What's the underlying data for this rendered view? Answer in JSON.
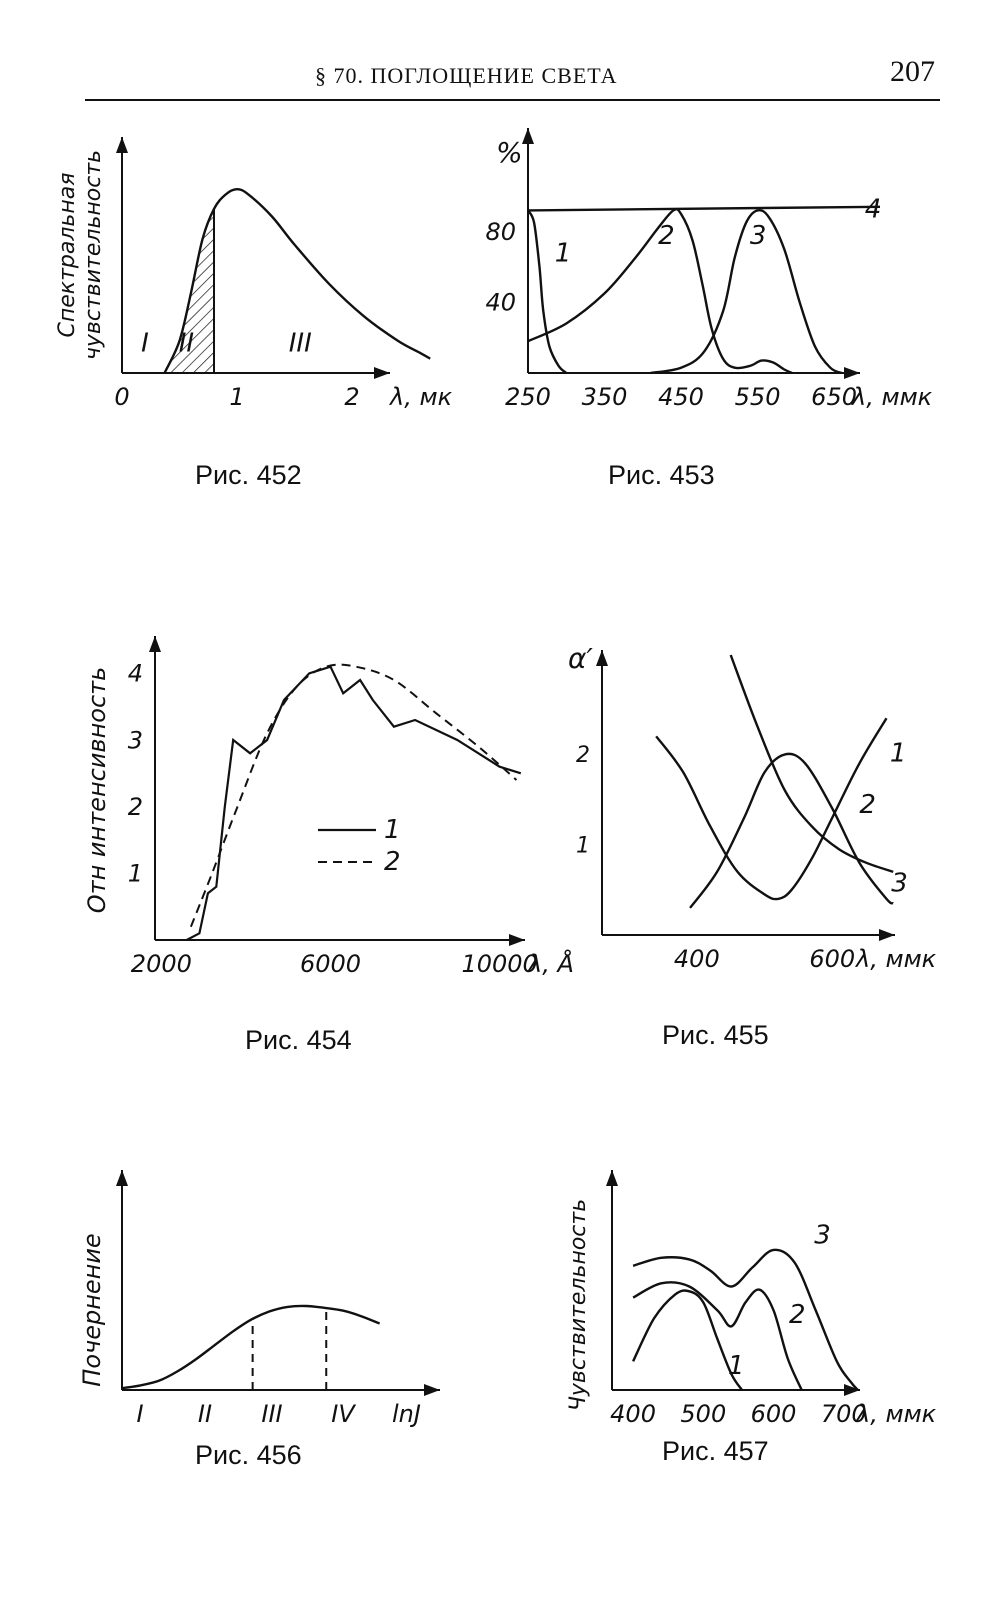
{
  "header": {
    "title": "§ 70. ПОГЛОЩЕНИЕ СВЕТА",
    "page_number": "207"
  },
  "chart_data": [
    {
      "id": "fig452",
      "type": "line",
      "caption": "Рис. 452",
      "ylabel_lines": [
        "Спектральная",
        "чувствительность"
      ],
      "xlabel": "λ, мк",
      "xticks": [
        {
          "v": 0,
          "t": "0"
        },
        {
          "v": 1,
          "t": "1"
        },
        {
          "v": 2,
          "t": "2"
        }
      ],
      "xlim": [
        0,
        2.8
      ],
      "ylim": [
        0,
        1.25
      ],
      "series": [
        {
          "points": [
            [
              0.37,
              0
            ],
            [
              0.5,
              0.18
            ],
            [
              0.6,
              0.45
            ],
            [
              0.7,
              0.75
            ],
            [
              0.8,
              0.92
            ],
            [
              0.9,
              1.0
            ],
            [
              1.0,
              1.03
            ],
            [
              1.1,
              1.0
            ],
            [
              1.3,
              0.88
            ],
            [
              1.5,
              0.72
            ],
            [
              1.8,
              0.5
            ],
            [
              2.1,
              0.32
            ],
            [
              2.4,
              0.18
            ],
            [
              2.6,
              0.11
            ],
            [
              2.68,
              0.08
            ]
          ]
        }
      ],
      "shaded_region": {
        "from": 0.42,
        "to": 0.8
      },
      "region_labels": [
        {
          "text": "I",
          "x": 0.2,
          "y": 0.12
        },
        {
          "text": "II",
          "x": 0.56,
          "y": 0.12
        },
        {
          "text": "III",
          "x": 1.55,
          "y": 0.12
        }
      ]
    },
    {
      "id": "fig453",
      "type": "line",
      "caption": "Рис. 453",
      "ylabel": "%",
      "xlabel": "λ, ммк",
      "xticks": [
        {
          "v": 250,
          "t": "250"
        },
        {
          "v": 350,
          "t": "350"
        },
        {
          "v": 450,
          "t": "450"
        },
        {
          "v": 550,
          "t": "550"
        },
        {
          "v": 650,
          "t": "650"
        }
      ],
      "yticks": [
        {
          "v": 40,
          "t": "40"
        },
        {
          "v": 80,
          "t": "80"
        }
      ],
      "xlim": [
        250,
        710
      ],
      "ylim": [
        0,
        112
      ],
      "series": [
        {
          "name": "1",
          "points": [
            [
              250,
              92
            ],
            [
              258,
              85
            ],
            [
              265,
              60
            ],
            [
              270,
              35
            ],
            [
              278,
              15
            ],
            [
              290,
              4
            ],
            [
              300,
              0
            ]
          ]
        },
        {
          "name": "2",
          "points": [
            [
              250,
              18
            ],
            [
              300,
              28
            ],
            [
              350,
              45
            ],
            [
              390,
              65
            ],
            [
              420,
              82
            ],
            [
              440,
              92
            ],
            [
              450,
              90
            ],
            [
              465,
              75
            ],
            [
              478,
              50
            ],
            [
              490,
              25
            ],
            [
              505,
              8
            ],
            [
              520,
              3
            ],
            [
              540,
              4
            ],
            [
              555,
              7
            ],
            [
              570,
              6
            ],
            [
              585,
              2
            ],
            [
              595,
              0
            ]
          ]
        },
        {
          "name": "3",
          "points": [
            [
              410,
              0
            ],
            [
              450,
              3
            ],
            [
              480,
              12
            ],
            [
              505,
              35
            ],
            [
              520,
              65
            ],
            [
              535,
              85
            ],
            [
              550,
              92
            ],
            [
              565,
              88
            ],
            [
              585,
              70
            ],
            [
              605,
              40
            ],
            [
              625,
              15
            ],
            [
              645,
              3
            ],
            [
              660,
              0
            ]
          ]
        },
        {
          "name": "4",
          "points": [
            [
              250,
              92
            ],
            [
              710,
              94
            ]
          ]
        }
      ],
      "series_labels": [
        {
          "text": "1",
          "x": 285,
          "y": 63
        },
        {
          "text": "2",
          "x": 420,
          "y": 73
        },
        {
          "text": "3",
          "x": 540,
          "y": 73
        },
        {
          "text": "4",
          "x": 690,
          "y": 88
        }
      ]
    },
    {
      "id": "fig454",
      "type": "line",
      "caption": "Рис. 454",
      "ylabel": "Отн интенсивность",
      "xlabel": "λ, Å",
      "xticks": [
        {
          "v": 2000,
          "t": "2000"
        },
        {
          "v": 6000,
          "t": "6000"
        },
        {
          "v": 10000,
          "t": "10000"
        }
      ],
      "yticks": [
        {
          "v": 1,
          "t": "1"
        },
        {
          "v": 2,
          "t": "2"
        },
        {
          "v": 3,
          "t": "3"
        },
        {
          "v": 4,
          "t": "4"
        }
      ],
      "xlim": [
        1850,
        10600
      ],
      "ylim": [
        0,
        4.5
      ],
      "series": [
        {
          "name": "1",
          "points": [
            [
              2600,
              0
            ],
            [
              2900,
              0.1
            ],
            [
              3100,
              0.7
            ],
            [
              3300,
              0.8
            ],
            [
              3500,
              2.0
            ],
            [
              3700,
              3.0
            ],
            [
              4100,
              2.8
            ],
            [
              4500,
              3.0
            ],
            [
              4900,
              3.6
            ],
            [
              5500,
              4.0
            ],
            [
              6000,
              4.1
            ],
            [
              6300,
              3.7
            ],
            [
              6700,
              3.9
            ],
            [
              7000,
              3.6
            ],
            [
              7500,
              3.2
            ],
            [
              8000,
              3.3
            ],
            [
              9000,
              3.0
            ],
            [
              10000,
              2.6
            ],
            [
              10500,
              2.5
            ]
          ]
        },
        {
          "name": "2",
          "points": [
            [
              2700,
              0.2
            ],
            [
              3200,
              1.0
            ],
            [
              3800,
              2.0
            ],
            [
              4500,
              3.1
            ],
            [
              5200,
              3.8
            ],
            [
              5900,
              4.1
            ],
            [
              6600,
              4.1
            ],
            [
              7500,
              3.9
            ],
            [
              8500,
              3.4
            ],
            [
              9500,
              2.9
            ],
            [
              10400,
              2.4
            ]
          ]
        }
      ],
      "legend": [
        {
          "name": "1",
          "style": "solid"
        },
        {
          "name": "2",
          "style": "dashed"
        }
      ]
    },
    {
      "id": "fig455",
      "type": "line",
      "caption": "Рис. 455",
      "ylabel": "α′",
      "xlabel": "λ, ммк",
      "xticks": [
        {
          "v": 400,
          "t": "400"
        },
        {
          "v": 600,
          "t": "600"
        }
      ],
      "yticks": [
        {
          "v": 1,
          "t": "1"
        },
        {
          "v": 2,
          "t": "2"
        }
      ],
      "xlim": [
        260,
        700
      ],
      "ylim": [
        0,
        3.1
      ],
      "series": [
        {
          "name": "1",
          "points": [
            [
              340,
              2.2
            ],
            [
              380,
              1.8
            ],
            [
              420,
              1.2
            ],
            [
              460,
              0.7
            ],
            [
              500,
              0.45
            ],
            [
              520,
              0.4
            ],
            [
              540,
              0.5
            ],
            [
              570,
              0.85
            ],
            [
              600,
              1.3
            ],
            [
              640,
              1.9
            ],
            [
              680,
              2.4
            ]
          ]
        },
        {
          "name": "2",
          "points": [
            [
              390,
              0.3
            ],
            [
              430,
              0.7
            ],
            [
              470,
              1.3
            ],
            [
              500,
              1.8
            ],
            [
              530,
              2.0
            ],
            [
              560,
              1.9
            ],
            [
              600,
              1.4
            ],
            [
              640,
              0.8
            ],
            [
              680,
              0.4
            ],
            [
              690,
              0.35
            ]
          ]
        },
        {
          "name": "3",
          "points": [
            [
              450,
              3.1
            ],
            [
              490,
              2.3
            ],
            [
              530,
              1.6
            ],
            [
              570,
              1.2
            ],
            [
              610,
              0.95
            ],
            [
              650,
              0.8
            ],
            [
              690,
              0.7
            ]
          ]
        }
      ],
      "series_labels": [
        {
          "text": "1",
          "x": 685,
          "y": 1.92
        },
        {
          "text": "2",
          "x": 640,
          "y": 1.35
        },
        {
          "text": "3",
          "x": 687,
          "y": 0.48
        }
      ]
    },
    {
      "id": "fig456",
      "type": "line",
      "caption": "Рис. 456",
      "ylabel": "Почернение",
      "xlabel": "lnJ",
      "xticks": [],
      "region_labels": [
        "I",
        "II",
        "III",
        "IV"
      ],
      "xlim": [
        0,
        10
      ],
      "ylim": [
        0,
        1.3
      ],
      "series": [
        {
          "points": [
            [
              0,
              0.02
            ],
            [
              0.5,
              0.05
            ],
            [
              1,
              0.1
            ],
            [
              1.5,
              0.2
            ],
            [
              2,
              0.33
            ],
            [
              2.5,
              0.48
            ],
            [
              3,
              0.63
            ],
            [
              3.5,
              0.76
            ],
            [
              4,
              0.85
            ],
            [
              4.5,
              0.9
            ],
            [
              5,
              0.91
            ],
            [
              5.5,
              0.89
            ],
            [
              6,
              0.86
            ],
            [
              6.5,
              0.8
            ],
            [
              7,
              0.72
            ]
          ]
        }
      ],
      "dashed_verticals": [
        3.55,
        5.55
      ]
    },
    {
      "id": "fig457",
      "type": "line",
      "caption": "Рис. 457",
      "ylabel": "Чувствительность",
      "xlabel": "λ, ммк",
      "xticks": [
        {
          "v": 400,
          "t": "400"
        },
        {
          "v": 500,
          "t": "500"
        },
        {
          "v": 600,
          "t": "600"
        },
        {
          "v": 700,
          "t": "700"
        }
      ],
      "xlim": [
        370,
        780
      ],
      "ylim": [
        0,
        1.35
      ],
      "series": [
        {
          "name": "1",
          "points": [
            [
              400,
              0.18
            ],
            [
              430,
              0.45
            ],
            [
              460,
              0.6
            ],
            [
              480,
              0.62
            ],
            [
              500,
              0.55
            ],
            [
              520,
              0.32
            ],
            [
              540,
              0.1
            ],
            [
              555,
              0
            ]
          ]
        },
        {
          "name": "2",
          "points": [
            [
              400,
              0.58
            ],
            [
              440,
              0.67
            ],
            [
              480,
              0.65
            ],
            [
              520,
              0.5
            ],
            [
              540,
              0.4
            ],
            [
              560,
              0.55
            ],
            [
              580,
              0.63
            ],
            [
              600,
              0.5
            ],
            [
              620,
              0.2
            ],
            [
              640,
              0
            ]
          ]
        },
        {
          "name": "3",
          "points": [
            [
              400,
              0.78
            ],
            [
              440,
              0.83
            ],
            [
              480,
              0.82
            ],
            [
              510,
              0.75
            ],
            [
              540,
              0.65
            ],
            [
              570,
              0.77
            ],
            [
              600,
              0.88
            ],
            [
              630,
              0.8
            ],
            [
              660,
              0.5
            ],
            [
              690,
              0.18
            ],
            [
              710,
              0.05
            ],
            [
              720,
              0
            ]
          ]
        }
      ],
      "series_labels": [
        {
          "text": "1",
          "x": 535,
          "y": 0.1
        },
        {
          "text": "2",
          "x": 622,
          "y": 0.42
        },
        {
          "text": "3",
          "x": 658,
          "y": 0.92
        }
      ]
    }
  ]
}
